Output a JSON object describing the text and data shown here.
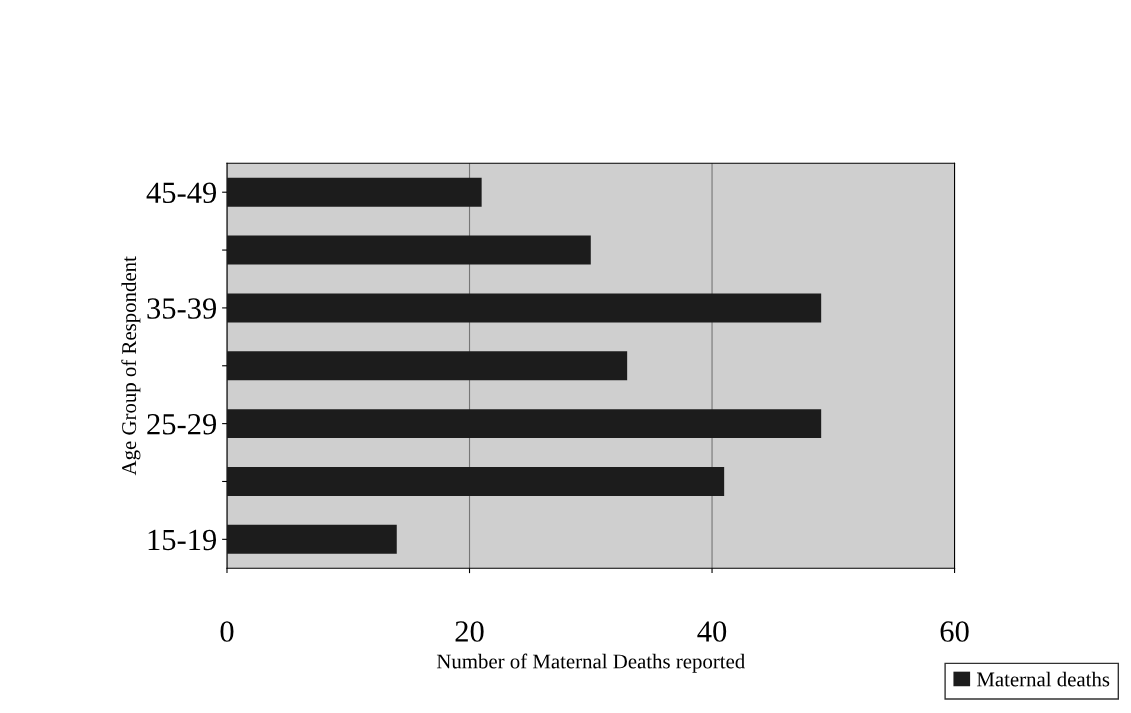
{
  "chart_data": {
    "type": "bar",
    "orientation": "horizontal",
    "xlabel": "Number of Maternal Deaths reported",
    "ylabel": "Age Group of Respondent",
    "categories": [
      "45-49",
      null,
      "35-39",
      null,
      "25-29",
      null,
      "15-19"
    ],
    "series": [
      {
        "name": "Maternal deaths",
        "color": "#1c1c1c",
        "values": [
          21,
          30,
          49,
          33,
          49,
          41,
          14
        ]
      }
    ],
    "xlim": [
      0,
      60
    ],
    "xticks": [
      0,
      20,
      40,
      60
    ],
    "grid": "x",
    "legend": "bottom right"
  }
}
